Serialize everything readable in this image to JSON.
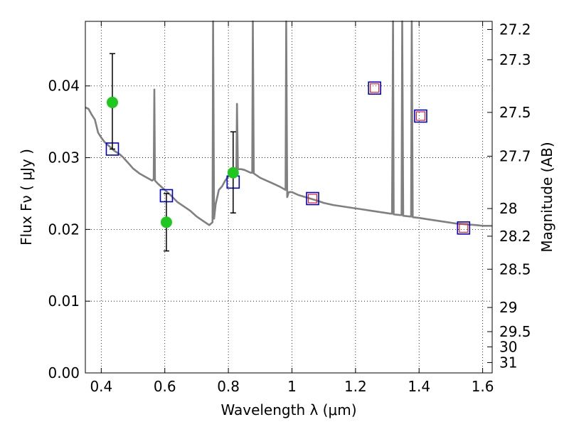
{
  "chart_data": {
    "type": "scatter",
    "xlabel": "Wavelength  λ (μm)",
    "ylabel": "Flux  Fν  ( μJy )",
    "y2label": "Magnitude (AB)",
    "xlim": [
      0.35,
      1.63
    ],
    "ylim": [
      0.0,
      0.049
    ],
    "grid": true,
    "x_ticks": [
      {
        "value": 0.4,
        "label": "0.4"
      },
      {
        "value": 0.6,
        "label": "0.6"
      },
      {
        "value": 0.8,
        "label": "0.8"
      },
      {
        "value": 1.0,
        "label": "1"
      },
      {
        "value": 1.2,
        "label": "1.2"
      },
      {
        "value": 1.4,
        "label": "1.4"
      },
      {
        "value": 1.6,
        "label": "1.6"
      }
    ],
    "y_ticks": [
      {
        "value": 0.0,
        "label": "0.00"
      },
      {
        "value": 0.01,
        "label": "0.01"
      },
      {
        "value": 0.02,
        "label": "0.02"
      },
      {
        "value": 0.03,
        "label": "0.03"
      },
      {
        "value": 0.04,
        "label": "0.04"
      }
    ],
    "magnitude_ticks": [
      {
        "mag": 27.2,
        "label": "27.2"
      },
      {
        "mag": 27.3,
        "label": "27.3"
      },
      {
        "mag": 27.5,
        "label": "27.5"
      },
      {
        "mag": 27.7,
        "label": "27.7"
      },
      {
        "mag": 28.0,
        "label": "28"
      },
      {
        "mag": 28.2,
        "label": "28.2"
      },
      {
        "mag": 28.5,
        "label": "28.5"
      },
      {
        "mag": 29.0,
        "label": "29"
      },
      {
        "mag": 29.5,
        "label": "29.5"
      },
      {
        "mag": 30.0,
        "label": "30"
      },
      {
        "mag": 31.0,
        "label": "31"
      }
    ],
    "series": [
      {
        "kind": "model-spectrum-line",
        "color": "#808080",
        "points": [
          [
            0.35,
            0.037
          ],
          [
            0.36,
            0.0368
          ],
          [
            0.37,
            0.036
          ],
          [
            0.38,
            0.0353
          ],
          [
            0.39,
            0.0335
          ],
          [
            0.4,
            0.0328
          ],
          [
            0.41,
            0.0322
          ],
          [
            0.42,
            0.0318
          ],
          [
            0.43,
            0.0314
          ],
          [
            0.44,
            0.031
          ],
          [
            0.45,
            0.0307
          ],
          [
            0.46,
            0.0304
          ],
          [
            0.47,
            0.03
          ],
          [
            0.48,
            0.0295
          ],
          [
            0.49,
            0.029
          ],
          [
            0.5,
            0.0285
          ],
          [
            0.52,
            0.0278
          ],
          [
            0.54,
            0.0273
          ],
          [
            0.56,
            0.0268
          ],
          [
            0.565,
            0.027
          ],
          [
            0.567,
            0.0395
          ],
          [
            0.569,
            0.0268
          ],
          [
            0.58,
            0.0263
          ],
          [
            0.6,
            0.0255
          ],
          [
            0.62,
            0.0247
          ],
          [
            0.64,
            0.0238
          ],
          [
            0.66,
            0.0232
          ],
          [
            0.68,
            0.0226
          ],
          [
            0.7,
            0.0218
          ],
          [
            0.72,
            0.0212
          ],
          [
            0.74,
            0.0206
          ],
          [
            0.75,
            0.021
          ],
          [
            0.752,
            0.049
          ],
          [
            0.755,
            0.0215
          ],
          [
            0.76,
            0.0235
          ],
          [
            0.77,
            0.0255
          ],
          [
            0.78,
            0.026
          ],
          [
            0.79,
            0.0268
          ],
          [
            0.8,
            0.0274
          ],
          [
            0.81,
            0.028
          ],
          [
            0.82,
            0.0283
          ],
          [
            0.825,
            0.0283
          ],
          [
            0.827,
            0.0375
          ],
          [
            0.83,
            0.0284
          ],
          [
            0.84,
            0.0284
          ],
          [
            0.85,
            0.0283
          ],
          [
            0.86,
            0.0281
          ],
          [
            0.87,
            0.0279
          ],
          [
            0.875,
            0.0279
          ],
          [
            0.877,
            0.049
          ],
          [
            0.88,
            0.0278
          ],
          [
            0.9,
            0.0272
          ],
          [
            0.92,
            0.0268
          ],
          [
            0.94,
            0.0264
          ],
          [
            0.96,
            0.026
          ],
          [
            0.98,
            0.0255
          ],
          [
            0.982,
            0.049
          ],
          [
            0.985,
            0.0245
          ],
          [
            0.99,
            0.0252
          ],
          [
            1.0,
            0.0252
          ],
          [
            1.02,
            0.0248
          ],
          [
            1.05,
            0.0244
          ],
          [
            1.08,
            0.024
          ],
          [
            1.1,
            0.0237
          ],
          [
            1.13,
            0.0234
          ],
          [
            1.16,
            0.0232
          ],
          [
            1.19,
            0.023
          ],
          [
            1.22,
            0.0228
          ],
          [
            1.25,
            0.0226
          ],
          [
            1.28,
            0.0224
          ],
          [
            1.31,
            0.0222
          ],
          [
            1.315,
            0.0222
          ],
          [
            1.318,
            0.049
          ],
          [
            1.32,
            0.0221
          ],
          [
            1.34,
            0.022
          ],
          [
            1.345,
            0.022
          ],
          [
            1.347,
            0.049
          ],
          [
            1.35,
            0.0219
          ],
          [
            1.37,
            0.0218
          ],
          [
            1.375,
            0.0218
          ],
          [
            1.377,
            0.049
          ],
          [
            1.38,
            0.0217
          ],
          [
            1.4,
            0.0216
          ],
          [
            1.43,
            0.0214
          ],
          [
            1.46,
            0.0212
          ],
          [
            1.49,
            0.021
          ],
          [
            1.52,
            0.0208
          ],
          [
            1.55,
            0.0207
          ],
          [
            1.58,
            0.0206
          ],
          [
            1.6,
            0.0205
          ],
          [
            1.63,
            0.0205
          ]
        ]
      },
      {
        "kind": "observed-points",
        "marker": "circle",
        "color": "#1ec81e",
        "points": [
          {
            "x": 0.435,
            "y": 0.0377,
            "yerr_low": 0.0312,
            "yerr_high": 0.0445
          },
          {
            "x": 0.605,
            "y": 0.021,
            "yerr_low": 0.017,
            "yerr_high": 0.025
          },
          {
            "x": 0.815,
            "y": 0.0279,
            "yerr_low": 0.0223,
            "yerr_high": 0.0336
          }
        ]
      },
      {
        "kind": "model-photometry",
        "marker": "square",
        "color": "#0000cc",
        "points": [
          {
            "x": 0.435,
            "y": 0.0312
          },
          {
            "x": 0.605,
            "y": 0.0247
          },
          {
            "x": 0.815,
            "y": 0.0266
          },
          {
            "x": 1.065,
            "y": 0.0243
          },
          {
            "x": 1.26,
            "y": 0.0397
          },
          {
            "x": 1.405,
            "y": 0.0358
          },
          {
            "x": 1.54,
            "y": 0.0202
          }
        ]
      },
      {
        "kind": "upper-limits",
        "marker": "square",
        "color": "#e02020",
        "points": [
          {
            "x": 1.065,
            "y": 0.0243
          },
          {
            "x": 1.26,
            "y": 0.0397
          },
          {
            "x": 1.405,
            "y": 0.0358
          },
          {
            "x": 1.54,
            "y": 0.0202
          }
        ]
      }
    ]
  }
}
